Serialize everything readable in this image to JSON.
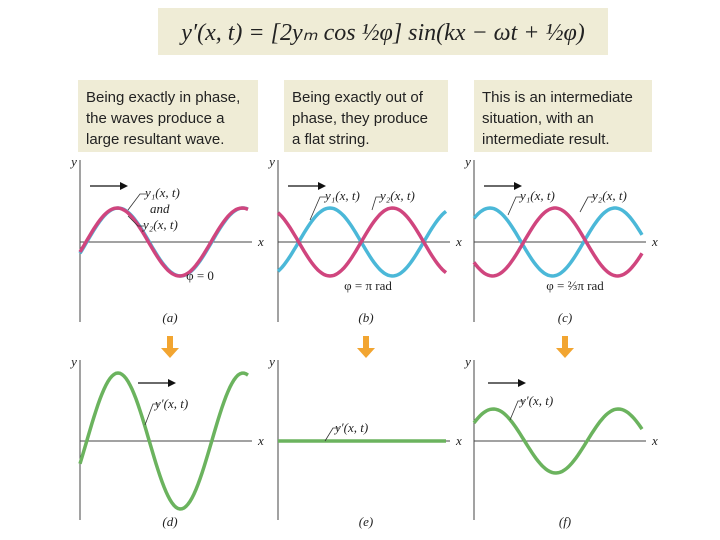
{
  "equation": "y′(x, t) = [2yₘ cos ½φ] sin(kx − ωt + ½φ)",
  "axis_labels": {
    "y": "y",
    "x": "x"
  },
  "panels": [
    {
      "caption": [
        "Being exactly in phase,",
        "the waves produce a",
        "large resultant wave."
      ],
      "wave_labels": [
        "y₁(x, t)",
        "and",
        "y₂(x, t)"
      ],
      "phase": "φ = 0",
      "tag": "(a)",
      "result_label": "y′(x, t)",
      "result_tag": "(d)"
    },
    {
      "caption": [
        "Being exactly out of",
        "phase, they produce",
        "a flat string."
      ],
      "wave_labels": [
        "y₁(x, t)",
        "y₂(x, t)"
      ],
      "phase": "φ = π rad",
      "tag": "(b)",
      "result_label": "y′(x, t)",
      "result_tag": "(e)"
    },
    {
      "caption": [
        "This is an intermediate",
        "situation, with an",
        "intermediate result."
      ],
      "wave_labels": [
        "y₁(x, t)",
        "y₂(x, t)"
      ],
      "phase": "φ = ⅔π rad",
      "tag": "(c)",
      "result_label": "y′(x, t)",
      "result_tag": "(f)"
    }
  ]
}
